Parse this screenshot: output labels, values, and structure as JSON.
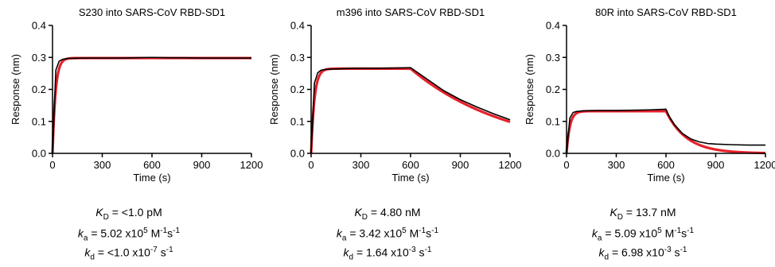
{
  "colors": {
    "observed": "#000000",
    "fit": "#e8202a",
    "axis": "#000000"
  },
  "chart_data": [
    {
      "type": "line",
      "title": "S230 into SARS-CoV RBD-SD1",
      "xlabel": "Time (s)",
      "ylabel": "Response (nm)",
      "xlim": [
        0,
        1200
      ],
      "ylim": [
        0.0,
        0.4
      ],
      "xticks": [
        "0",
        "300",
        "600",
        "900",
        "1200"
      ],
      "yticks": [
        "0.0",
        "0.1",
        "0.2",
        "0.3",
        "0.4"
      ],
      "baseline": 0.0,
      "model": {
        "rmax": 0.298,
        "kobs": 0.055,
        "t_dissoc": 600,
        "koff": 1e-07,
        "plateau_off": 0.0
      },
      "series": [
        {
          "values_x": [
            0,
            20,
            40,
            60,
            80,
            100,
            200,
            300,
            400,
            500,
            600,
            700,
            800,
            900,
            1000,
            1100,
            1200
          ],
          "values_y": [
            0.0,
            0.26,
            0.288,
            0.294,
            0.296,
            0.297,
            0.298,
            0.298,
            0.298,
            0.299,
            0.3,
            0.299,
            0.299,
            0.298,
            0.298,
            0.298,
            0.298
          ]
        }
      ],
      "kinetics": {
        "kd_label": "K",
        "kd_sub": "D",
        "kd_value": " = <1.0 pM",
        "ka_label": "k",
        "ka_sub": "a",
        "ka_value": " = 5.02 x10",
        "ka_exp": "5",
        "ka_unit": " M",
        "ka_unit_exp": "-1",
        "ka_unit2": "s",
        "ka_unit2_exp": "-1",
        "koff_label": "k",
        "koff_sub": "d",
        "koff_value": " = <1.0 x10",
        "koff_exp": "-7",
        "koff_unit": " s",
        "koff_unit_exp": "-1"
      }
    },
    {
      "type": "line",
      "title": "m396 into SARS-CoV RBD-SD1",
      "xlabel": "Time (s)",
      "ylabel": "Response (nm)",
      "xlim": [
        0,
        1200
      ],
      "ylim": [
        0.0,
        0.4
      ],
      "xticks": [
        "0",
        "300",
        "600",
        "900",
        "1200"
      ],
      "yticks": [
        "0.0",
        "0.1",
        "0.2",
        "0.3",
        "0.4"
      ],
      "baseline": 0.0,
      "model": {
        "rmax": 0.265,
        "kobs": 0.05,
        "t_dissoc": 600,
        "koff": 0.00165,
        "plateau_off": 0.0
      },
      "series": [
        {
          "values_x": [
            0,
            20,
            40,
            60,
            80,
            100,
            200,
            300,
            400,
            500,
            600,
            650,
            700,
            800,
            900,
            1000,
            1100,
            1200
          ],
          "values_y": [
            0.0,
            0.22,
            0.252,
            0.26,
            0.262,
            0.263,
            0.265,
            0.266,
            0.266,
            0.267,
            0.268,
            0.25,
            0.232,
            0.196,
            0.168,
            0.145,
            0.124,
            0.105
          ]
        }
      ],
      "kinetics": {
        "kd_label": "K",
        "kd_sub": "D",
        "kd_value": " = 4.80 nM",
        "ka_label": "k",
        "ka_sub": "a",
        "ka_value": " = 3.42 x10",
        "ka_exp": "5",
        "ka_unit": " M",
        "ka_unit_exp": "-1",
        "ka_unit2": "s",
        "ka_unit2_exp": "-1",
        "koff_label": "k",
        "koff_sub": "d",
        "koff_value": " = 1.64 x10",
        "koff_exp": "-3",
        "koff_unit": " s",
        "koff_unit_exp": "-1"
      }
    },
    {
      "type": "line",
      "title": "80R into SARS-CoV RBD-SD1",
      "xlabel": "Time (s)",
      "ylabel": "Response (nm)",
      "xlim": [
        0,
        1200
      ],
      "ylim": [
        0.0,
        0.4
      ],
      "xticks": [
        "0",
        "300",
        "600",
        "900",
        "1200"
      ],
      "yticks": [
        "0.0",
        "0.1",
        "0.2",
        "0.3",
        "0.4"
      ],
      "baseline": 0.0,
      "model": {
        "rmax": 0.132,
        "kobs": 0.05,
        "t_dissoc": 600,
        "koff": 0.008,
        "plateau_off": 0.0
      },
      "series": [
        {
          "values_x": [
            0,
            20,
            40,
            60,
            80,
            100,
            200,
            300,
            400,
            500,
            600,
            620,
            650,
            700,
            750,
            800,
            850,
            900,
            1000,
            1100,
            1200
          ],
          "values_y": [
            0.0,
            0.11,
            0.128,
            0.131,
            0.132,
            0.133,
            0.134,
            0.134,
            0.135,
            0.136,
            0.138,
            0.115,
            0.09,
            0.062,
            0.045,
            0.036,
            0.031,
            0.029,
            0.027,
            0.026,
            0.026
          ]
        }
      ],
      "kinetics": {
        "kd_label": "K",
        "kd_sub": "D",
        "kd_value": " = 13.7 nM",
        "ka_label": "k",
        "ka_sub": "a",
        "ka_value": " = 5.09 x10",
        "ka_exp": "5",
        "ka_unit": " M",
        "ka_unit_exp": "-1",
        "ka_unit2": "s",
        "ka_unit2_exp": "-1",
        "koff_label": "k",
        "koff_sub": "d",
        "koff_value": " = 6.98 x10",
        "koff_exp": "-3",
        "koff_unit": " s",
        "koff_unit_exp": "-1"
      }
    }
  ]
}
